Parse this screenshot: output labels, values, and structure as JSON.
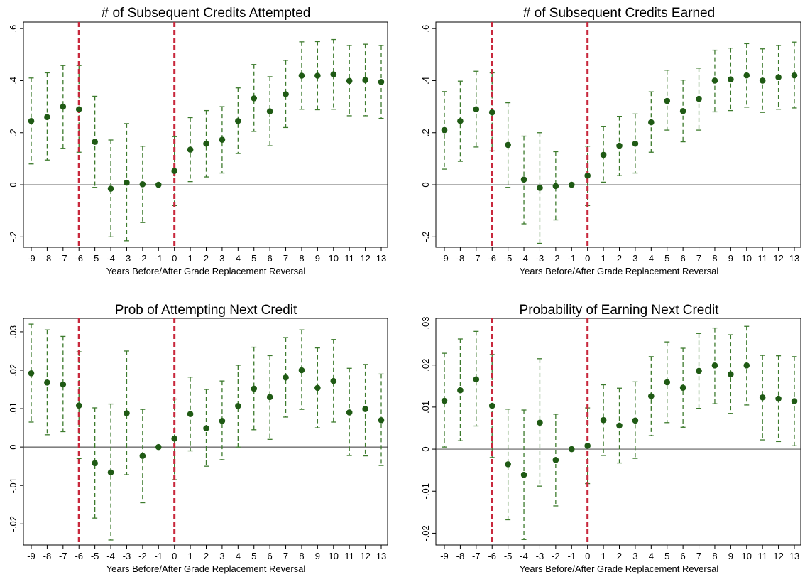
{
  "colors": {
    "point": "#1f5a14",
    "ci": "#3c7a2c",
    "event_line": "#c8283c",
    "zero_line": "#333333",
    "frame": "#000000"
  },
  "chart_data": [
    {
      "type": "scatter",
      "title": "# of Subsequent Credits Attempted",
      "xlabel": "Years Before/After Grade Replacement Reversal",
      "ylabel": "",
      "x": [
        -9,
        -8,
        -7,
        -6,
        -5,
        -4,
        -3,
        -2,
        -1,
        0,
        1,
        2,
        3,
        4,
        5,
        6,
        7,
        8,
        9,
        10,
        11,
        12,
        13
      ],
      "x_ticks": [
        "-9",
        "-8",
        "-7",
        "-6",
        "-5",
        "-4",
        "-3",
        "-2",
        "-1",
        "0",
        "1",
        "2",
        "3",
        "4",
        "5",
        "6",
        "7",
        "8",
        "9",
        "10",
        "11",
        "12",
        "13"
      ],
      "y_ticks": [
        {
          "v": -0.2,
          "label": "-.2"
        },
        {
          "v": 0,
          "label": "0"
        },
        {
          "v": 0.2,
          "label": ".2"
        },
        {
          "v": 0.4,
          "label": ".4"
        },
        {
          "v": 0.6,
          "label": ".6"
        }
      ],
      "ylim": [
        -0.24,
        0.625
      ],
      "y": [
        0.245,
        0.26,
        0.3,
        0.29,
        0.165,
        -0.015,
        0.008,
        0.002,
        0.0,
        0.053,
        0.135,
        0.158,
        0.173,
        0.245,
        0.332,
        0.282,
        0.348,
        0.419,
        0.419,
        0.424,
        0.399,
        0.402,
        0.395
      ],
      "lo": [
        0.08,
        0.095,
        0.14,
        0.125,
        -0.01,
        -0.2,
        -0.215,
        -0.145,
        0.0,
        -0.08,
        0.012,
        0.03,
        0.045,
        0.12,
        0.205,
        0.15,
        0.22,
        0.29,
        0.288,
        0.29,
        0.265,
        0.265,
        0.255
      ],
      "hi": [
        0.41,
        0.43,
        0.458,
        0.458,
        0.34,
        0.172,
        0.235,
        0.148,
        0.0,
        0.185,
        0.258,
        0.285,
        0.3,
        0.372,
        0.462,
        0.415,
        0.478,
        0.549,
        0.55,
        0.558,
        0.535,
        0.54,
        0.535
      ],
      "event_lines": [
        -6,
        0
      ],
      "zero_line": true,
      "grid": false
    },
    {
      "type": "scatter",
      "title": "# of Subsequent Credits Earned",
      "xlabel": "Years Before/After Grade Replacement Reversal",
      "ylabel": "",
      "x": [
        -9,
        -8,
        -7,
        -6,
        -5,
        -4,
        -3,
        -2,
        -1,
        0,
        1,
        2,
        3,
        4,
        5,
        6,
        7,
        8,
        9,
        10,
        11,
        12,
        13
      ],
      "x_ticks": [
        "-9",
        "-8",
        "-7",
        "-6",
        "-5",
        "-4",
        "-3",
        "-2",
        "-1",
        "0",
        "1",
        "2",
        "3",
        "4",
        "5",
        "6",
        "7",
        "8",
        "9",
        "10",
        "11",
        "12",
        "13"
      ],
      "y_ticks": [
        {
          "v": -0.2,
          "label": "-.2"
        },
        {
          "v": 0,
          "label": "0"
        },
        {
          "v": 0.2,
          "label": ".2"
        },
        {
          "v": 0.4,
          "label": ".4"
        },
        {
          "v": 0.6,
          "label": ".6"
        }
      ],
      "ylim": [
        -0.24,
        0.625
      ],
      "y": [
        0.21,
        0.245,
        0.29,
        0.278,
        0.153,
        0.02,
        -0.012,
        -0.005,
        0.0,
        0.035,
        0.115,
        0.15,
        0.158,
        0.24,
        0.322,
        0.283,
        0.33,
        0.4,
        0.405,
        0.42,
        0.4,
        0.413,
        0.42
      ],
      "lo": [
        0.06,
        0.09,
        0.145,
        0.13,
        -0.01,
        -0.15,
        -0.225,
        -0.135,
        0.0,
        -0.08,
        0.01,
        0.035,
        0.045,
        0.125,
        0.21,
        0.165,
        0.21,
        0.28,
        0.285,
        0.298,
        0.278,
        0.29,
        0.295
      ],
      "hi": [
        0.358,
        0.398,
        0.436,
        0.43,
        0.315,
        0.187,
        0.2,
        0.127,
        0.0,
        0.148,
        0.223,
        0.263,
        0.272,
        0.357,
        0.44,
        0.402,
        0.448,
        0.517,
        0.525,
        0.542,
        0.522,
        0.535,
        0.548
      ],
      "event_lines": [
        -6,
        0
      ],
      "zero_line": true,
      "grid": false
    },
    {
      "type": "scatter",
      "title": "Prob of Attempting Next Credit",
      "xlabel": "Years Before/After Grade Replacement Reversal",
      "ylabel": "",
      "x": [
        -9,
        -8,
        -7,
        -6,
        -5,
        -4,
        -3,
        -2,
        -1,
        0,
        1,
        2,
        3,
        4,
        5,
        6,
        7,
        8,
        9,
        10,
        11,
        12,
        13
      ],
      "x_ticks": [
        "-9",
        "-8",
        "-7",
        "-6",
        "-5",
        "-4",
        "-3",
        "-2",
        "-1",
        "0",
        "1",
        "2",
        "3",
        "4",
        "5",
        "6",
        "7",
        "8",
        "9",
        "10",
        "11",
        "12",
        "13"
      ],
      "y_ticks": [
        {
          "v": -0.02,
          "label": "-.02"
        },
        {
          "v": -0.01,
          "label": "-.01"
        },
        {
          "v": 0,
          "label": "0"
        },
        {
          "v": 0.01,
          "label": ".01"
        },
        {
          "v": 0.02,
          "label": ".02"
        },
        {
          "v": 0.03,
          "label": ".03"
        }
      ],
      "ylim": [
        -0.0255,
        0.0335
      ],
      "y": [
        0.0192,
        0.0168,
        0.0163,
        0.0108,
        -0.0042,
        -0.0066,
        0.0088,
        -0.0023,
        0.0,
        0.0022,
        0.0086,
        0.0049,
        0.0068,
        0.0107,
        0.0152,
        0.013,
        0.0181,
        0.02,
        0.0154,
        0.0172,
        0.009,
        0.0099,
        0.007
      ],
      "lo": [
        0.0065,
        0.0032,
        0.004,
        -0.003,
        -0.0185,
        -0.0242,
        -0.0072,
        -0.0145,
        0.0,
        -0.0085,
        -0.001,
        -0.005,
        -0.0033,
        0.0,
        0.0045,
        0.002,
        0.0078,
        0.0098,
        0.005,
        0.0065,
        -0.0022,
        -0.0023,
        -0.0048
      ],
      "hi": [
        0.032,
        0.0305,
        0.0288,
        0.0248,
        0.0102,
        0.0112,
        0.025,
        0.0098,
        0.0,
        0.0125,
        0.0182,
        0.015,
        0.0172,
        0.0213,
        0.026,
        0.0238,
        0.0285,
        0.0305,
        0.0258,
        0.028,
        0.0205,
        0.0215,
        0.019
      ],
      "event_lines": [
        -6,
        0
      ],
      "zero_line": true,
      "grid": false
    },
    {
      "type": "scatter",
      "title": "Probability of Earning Next Credit",
      "xlabel": "Years Before/After Grade Replacement Reversal",
      "ylabel": "",
      "x": [
        -9,
        -8,
        -7,
        -6,
        -5,
        -4,
        -3,
        -2,
        -1,
        0,
        1,
        2,
        3,
        4,
        5,
        6,
        7,
        8,
        9,
        10,
        11,
        12,
        13
      ],
      "x_ticks": [
        "-9",
        "-8",
        "-7",
        "-6",
        "-5",
        "-4",
        "-3",
        "-2",
        "-1",
        "0",
        "1",
        "2",
        "3",
        "4",
        "5",
        "6",
        "7",
        "8",
        "9",
        "10",
        "11",
        "12",
        "13"
      ],
      "y_ticks": [
        {
          "v": -0.02,
          "label": "-.02"
        },
        {
          "v": -0.01,
          "label": "-.01"
        },
        {
          "v": 0,
          "label": "0"
        },
        {
          "v": 0.01,
          "label": ".01"
        },
        {
          "v": 0.02,
          "label": ".02"
        },
        {
          "v": 0.03,
          "label": ".03"
        }
      ],
      "ylim": [
        -0.0228,
        0.0311
      ],
      "y": [
        0.0115,
        0.014,
        0.0166,
        0.0103,
        -0.0036,
        -0.0061,
        0.0063,
        -0.0026,
        0.0,
        0.0008,
        0.0069,
        0.0056,
        0.0068,
        0.0126,
        0.0159,
        0.0146,
        0.0186,
        0.0199,
        0.0178,
        0.0199,
        0.0123,
        0.012,
        0.0114
      ],
      "lo": [
        0.0005,
        0.002,
        0.0055,
        -0.002,
        -0.0168,
        -0.0215,
        -0.0088,
        -0.0135,
        0.0,
        -0.0082,
        -0.0015,
        -0.0033,
        -0.0022,
        0.0032,
        0.0063,
        0.0052,
        0.0097,
        0.0108,
        0.0085,
        0.0105,
        0.0022,
        0.0018,
        0.0008
      ],
      "hi": [
        0.0228,
        0.0262,
        0.028,
        0.0225,
        0.0095,
        0.0093,
        0.0215,
        0.0083,
        0.0,
        0.0098,
        0.0153,
        0.0145,
        0.016,
        0.022,
        0.0255,
        0.024,
        0.0275,
        0.0288,
        0.0272,
        0.0292,
        0.0223,
        0.0222,
        0.022
      ],
      "event_lines": [
        -6,
        0
      ],
      "zero_line": true,
      "grid": false
    }
  ]
}
